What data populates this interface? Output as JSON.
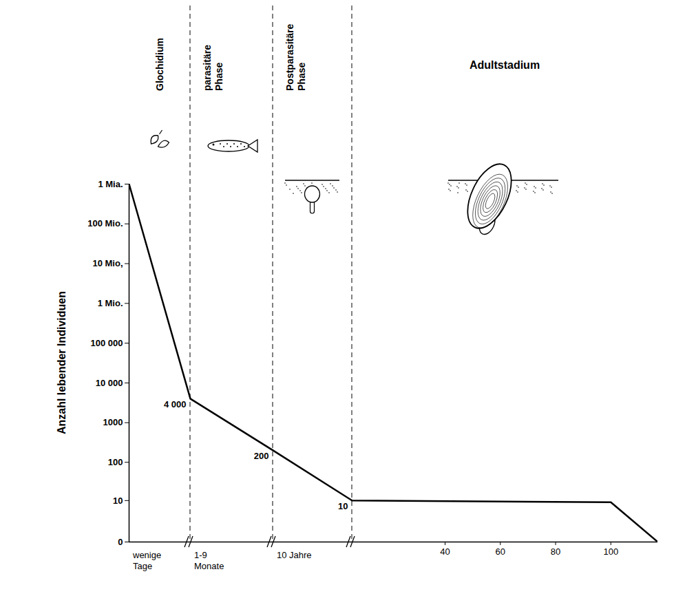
{
  "chart_data": {
    "type": "line",
    "ylabel": "Anzahl lebender Individuen",
    "log": "y",
    "x": [
      0,
      0.01,
      0.75,
      10.75,
      100,
      117
    ],
    "values": [
      1000000000,
      4000,
      200,
      10,
      9,
      0
    ],
    "value_labels": [
      null,
      "4 000",
      "200",
      "10",
      null,
      null
    ],
    "data_labels": true,
    "color": "#000000",
    "xlim": [
      0,
      117
    ],
    "xticks": [
      40,
      60,
      80,
      100
    ],
    "ylim": [
      0,
      1000000000
    ],
    "yticks": [
      0,
      10,
      100,
      1000,
      {
        "value": 10000,
        "label": "10 000"
      },
      {
        "value": 100000,
        "label": "100 000"
      },
      {
        "value": 1000000,
        "label": "1 Mio."
      },
      {
        "value": 10000000,
        "label": "10 Mio,"
      },
      {
        "value": 100000000,
        "label": "100 Mio."
      },
      {
        "value": 1000000000,
        "label": "1 Mia."
      }
    ],
    "phases": [
      {
        "name": "Glochidium",
        "duration": "wenige Tage",
        "end": 0.01
      },
      {
        "name": "parasitäre Phase",
        "duration": "1-9 Monate",
        "end": 0.75
      },
      {
        "name": "Postparasitäre Phase",
        "duration": "10 Jahre",
        "end": 10.75
      },
      {
        "name": "Adultstadium"
      }
    ]
  }
}
